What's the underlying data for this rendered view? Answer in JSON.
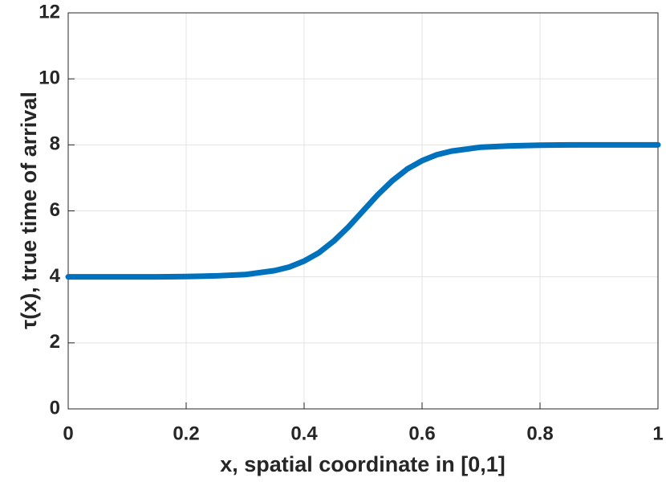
{
  "chart_data": {
    "type": "line",
    "xlabel": "x, spatial coordinate in [0,1]",
    "ylabel": "τ(x), true time of arrival",
    "x": [
      0,
      0.05,
      0.1,
      0.15,
      0.2,
      0.25,
      0.3,
      0.35,
      0.375,
      0.4,
      0.425,
      0.45,
      0.475,
      0.5,
      0.525,
      0.55,
      0.575,
      0.6,
      0.625,
      0.65,
      0.7,
      0.75,
      0.8,
      0.85,
      0.9,
      0.95,
      1
    ],
    "series": [
      {
        "color": "#0072bd",
        "values": [
          4.0,
          4.0,
          4.0,
          4.0,
          4.01,
          4.03,
          4.07,
          4.19,
          4.3,
          4.48,
          4.73,
          5.08,
          5.51,
          6.0,
          6.49,
          6.92,
          7.27,
          7.52,
          7.7,
          7.81,
          7.93,
          7.97,
          7.99,
          8.0,
          8.0,
          8.0,
          8.0
        ]
      }
    ],
    "xlim": [
      0,
      1
    ],
    "xticks": [
      0,
      0.2,
      0.4,
      0.6,
      0.8,
      1
    ],
    "ylim": [
      0,
      12
    ],
    "yticks": [
      0,
      2,
      4,
      6,
      8,
      10,
      12
    ],
    "grid": true
  }
}
